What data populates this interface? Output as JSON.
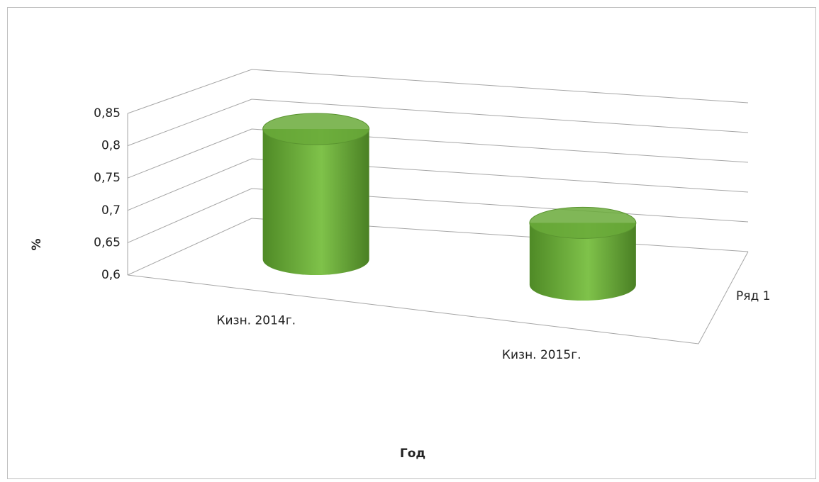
{
  "chart_data": {
    "type": "cylinder3d",
    "categories": [
      "Кизн. 2014г.",
      "Кизн. 2015г."
    ],
    "series": [
      {
        "name": "Ряд 1",
        "color": "#6aaa3a",
        "values": [
          0.81,
          0.7
        ]
      }
    ],
    "x_label": "Год",
    "y_label": "%",
    "ylim": [
      0.6,
      0.85
    ],
    "yticks": [
      {
        "value": 0.6,
        "label": "0,6"
      },
      {
        "value": 0.65,
        "label": "0,65"
      },
      {
        "value": 0.7,
        "label": "0,7"
      },
      {
        "value": 0.75,
        "label": "0,75"
      },
      {
        "value": 0.8,
        "label": "0,8"
      },
      {
        "value": 0.85,
        "label": "0,85"
      }
    ],
    "grid": true
  }
}
